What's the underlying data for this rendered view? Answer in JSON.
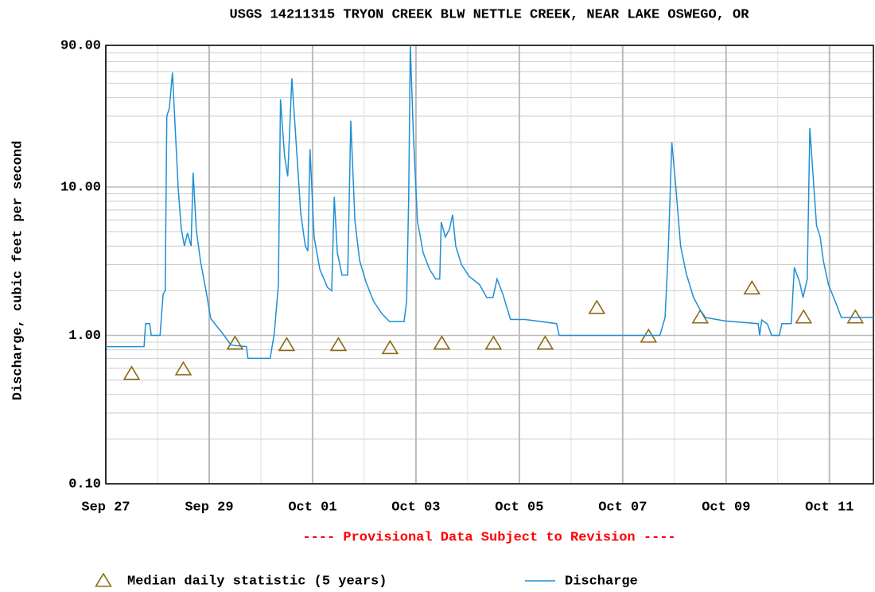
{
  "chart_data": {
    "type": "line",
    "title": "USGS 14211315 TRYON CREEK BLW NETTLE CREEK, NEAR LAKE OSWEGO, OR",
    "y_label": "Discharge, cubic feet per second",
    "annotation": "---- Provisional Data Subject to Revision ----",
    "log_y": true,
    "grid": true,
    "xlim": [
      0,
      14.85
    ],
    "xticks": [
      {
        "value": 0,
        "label": "Sep 27"
      },
      {
        "value": 2,
        "label": "Sep 29"
      },
      {
        "value": 4,
        "label": "Oct 01"
      },
      {
        "value": 6,
        "label": "Oct 03"
      },
      {
        "value": 8,
        "label": "Oct 05"
      },
      {
        "value": 10,
        "label": "Oct 07"
      },
      {
        "value": 12,
        "label": "Oct 09"
      },
      {
        "value": 14,
        "label": "Oct 11"
      }
    ],
    "ylim": [
      0.1,
      90
    ],
    "yticks": [
      {
        "value": 0.1,
        "label": "0.10"
      },
      {
        "value": 1,
        "label": "1.00"
      },
      {
        "value": 10,
        "label": "10.00"
      },
      {
        "value": 90,
        "label": "90.00"
      }
    ],
    "series": [
      {
        "name": "Median daily statistic (5 years)",
        "color": "#8c6a14",
        "marker": "triangle",
        "x": [
          0.5,
          1.5,
          2.5,
          3.5,
          4.5,
          5.5,
          6.5,
          7.5,
          8.5,
          9.5,
          10.5,
          11.5,
          12.5,
          13.5,
          14.5
        ],
        "values": [
          0.55,
          0.59,
          0.88,
          0.86,
          0.86,
          0.82,
          0.88,
          0.88,
          0.88,
          1.53,
          0.98,
          1.32,
          2.07,
          1.32,
          1.32
        ]
      },
      {
        "name": "Discharge",
        "color": "#1e8fd6",
        "marker": "line",
        "x": [
          0,
          0.74,
          0.77,
          0.85,
          0.88,
          1.05,
          1.11,
          1.15,
          1.18,
          1.23,
          1.29,
          1.34,
          1.4,
          1.46,
          1.52,
          1.58,
          1.65,
          1.69,
          1.75,
          1.83,
          1.95,
          2.03,
          2.14,
          2.26,
          2.42,
          2.72,
          2.75,
          3.18,
          3.26,
          3.34,
          3.38,
          3.46,
          3.52,
          3.6,
          3.68,
          3.77,
          3.86,
          3.91,
          3.95,
          4.03,
          4.14,
          4.29,
          4.37,
          4.42,
          4.48,
          4.57,
          4.68,
          4.74,
          4.82,
          4.91,
          5.03,
          5.18,
          5.34,
          5.49,
          5.77,
          5.82,
          5.86,
          5.89,
          5.95,
          6.03,
          6.14,
          6.26,
          6.38,
          6.46,
          6.49,
          6.57,
          6.65,
          6.71,
          6.77,
          6.88,
          7.03,
          7.23,
          7.37,
          7.49,
          7.57,
          7.68,
          7.83,
          8.11,
          8.72,
          8.77,
          10.72,
          10.82,
          10.88,
          10.95,
          11.03,
          11.12,
          11.23,
          11.37,
          11.49,
          11.6,
          11.98,
          12.62,
          12.65,
          12.69,
          12.8,
          12.88,
          13.03,
          13.08,
          13.26,
          13.32,
          13.42,
          13.49,
          13.57,
          13.62,
          13.69,
          13.75,
          13.82,
          13.88,
          13.98,
          14.11,
          14.23,
          14.85
        ],
        "values": [
          0.84,
          0.84,
          1.2,
          1.2,
          1.0,
          1.0,
          1.9,
          2.0,
          30,
          34,
          59,
          26,
          9.8,
          5.2,
          4,
          4.9,
          4,
          12.5,
          5.2,
          3.2,
          1.9,
          1.3,
          1.16,
          1.03,
          0.86,
          0.84,
          0.7,
          0.7,
          1.03,
          2.2,
          39,
          16,
          11.8,
          54,
          20.6,
          6.7,
          4,
          3.7,
          18,
          4.6,
          2.8,
          2.1,
          2.0,
          8.6,
          3.6,
          2.55,
          2.55,
          28,
          5.9,
          3.2,
          2.3,
          1.7,
          1.4,
          1.24,
          1.24,
          1.7,
          8.6,
          90,
          23,
          5.9,
          3.6,
          2.8,
          2.4,
          2.4,
          5.8,
          4.6,
          5.2,
          6.5,
          4,
          3,
          2.5,
          2.2,
          1.8,
          1.8,
          2.4,
          1.9,
          1.28,
          1.28,
          1.2,
          1.0,
          1.0,
          1.32,
          3.6,
          20,
          9.7,
          4,
          2.6,
          1.8,
          1.5,
          1.32,
          1.25,
          1.2,
          1.0,
          1.27,
          1.19,
          1.0,
          1.0,
          1.2,
          1.2,
          2.87,
          2.3,
          1.8,
          2.4,
          25,
          11,
          5.5,
          4.6,
          3.2,
          2.2,
          1.7,
          1.32,
          1.32
        ]
      }
    ]
  }
}
